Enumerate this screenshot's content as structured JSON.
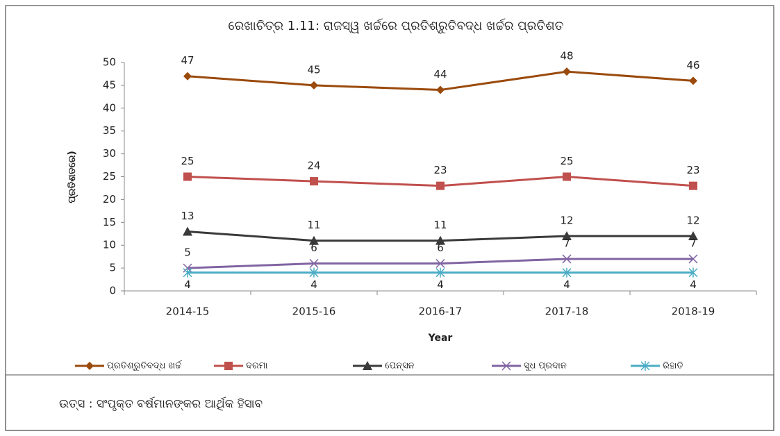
{
  "chart_data": {
    "type": "line",
    "title": "ରେଖାଚିତ୍ର 1.11: ରାଜସ୍ୱ ଖର୍ଚ୍ଚରେ ପ୍ରତିଶ୍ରୁତିବଦ୍ଧ ଖର୍ଚ୍ଚର ପ୍ରତିଶତ",
    "y_label": "ପ୍ରତିଶତରେ)",
    "x_label": "Year",
    "categories": [
      "2014-15",
      "2015-16",
      "2016-17",
      "2017-18",
      "2018-19"
    ],
    "series": [
      {
        "name": "ପ୍ରତିଶ୍ରୁତିବଦ୍ଧ ଖର୍ଚ୍ଚ",
        "color": "#9a4a0c",
        "marker": "diamond",
        "label_position": "above",
        "values": [
          47,
          45,
          44,
          48,
          46
        ]
      },
      {
        "name": "ଦରମା",
        "color": "#c0504d",
        "marker": "square",
        "label_position": "above",
        "values": [
          25,
          24,
          23,
          25,
          23
        ]
      },
      {
        "name": "ପେନ୍‌ସନ",
        "color": "#3a3a3a",
        "marker": "triangle",
        "label_position": "above",
        "values": [
          13,
          11,
          11,
          12,
          12
        ]
      },
      {
        "name": "ସୁଧ ପ୍ରଦାନ",
        "color": "#8064a2",
        "marker": "x",
        "label_position": "above",
        "values": [
          5,
          6,
          6,
          7,
          7
        ]
      },
      {
        "name": "ରିହାତି",
        "color": "#4bacc6",
        "marker": "star",
        "label_position": "below",
        "values": [
          4,
          4,
          4,
          4,
          4
        ]
      }
    ],
    "ylim": [
      0,
      50
    ],
    "yticks": [
      0,
      5,
      10,
      15,
      20,
      25,
      30,
      35,
      40,
      45,
      50
    ],
    "legend": "bottom",
    "source": "ଉତ୍ସ : ସଂପୃକ୍ତ ବର୍ଷମାନଙ୍କର ଆର୍ଥିକ ହିସାବ"
  }
}
